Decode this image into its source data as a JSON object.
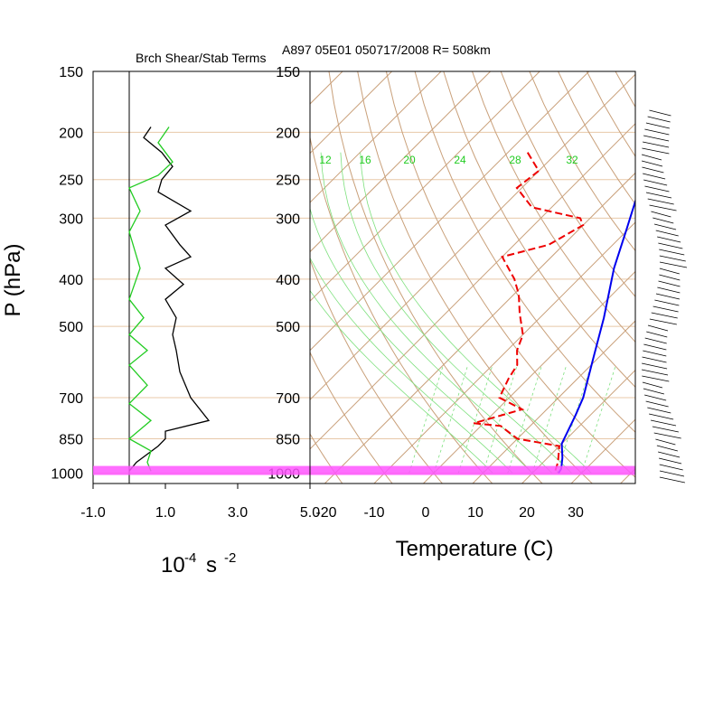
{
  "chart_data": [
    {
      "type": "line",
      "title": "Brch Shear/Stab Terms",
      "xlabel": "10⁻⁴ s⁻²",
      "xlabel_base": "10",
      "xlabel_exp1": "-4",
      "xlabel_unit": "s",
      "xlabel_exp2": "-2",
      "ylabel": "P (hPa)",
      "xlim": [
        -1.0,
        5.0
      ],
      "x_tick_labels": [
        "-1.0",
        "1.0",
        "3.0",
        "5.0"
      ],
      "y_tick_labels": [
        "150",
        "200",
        "250",
        "300",
        "400",
        "500",
        "700",
        "850",
        "1000"
      ],
      "y_scale": "log",
      "series": [
        {
          "color": "#000000",
          "points": [
            [
              0.6,
              195
            ],
            [
              0.4,
              205
            ],
            [
              0.9,
              220
            ],
            [
              1.2,
              235
            ],
            [
              0.9,
              250
            ],
            [
              0.8,
              265
            ],
            [
              1.7,
              290
            ],
            [
              1.0,
              310
            ],
            [
              1.4,
              340
            ],
            [
              1.7,
              360
            ],
            [
              1.0,
              380
            ],
            [
              1.5,
              410
            ],
            [
              1.0,
              440
            ],
            [
              1.3,
              480
            ],
            [
              1.2,
              520
            ],
            [
              1.3,
              560
            ],
            [
              1.4,
              620
            ],
            [
              1.7,
              700
            ],
            [
              2.2,
              780
            ],
            [
              1.0,
              820
            ],
            [
              1.0,
              850
            ],
            [
              0.8,
              880
            ],
            [
              0.2,
              950
            ],
            [
              0.0,
              990
            ]
          ]
        },
        {
          "color": "#22cc22",
          "points": [
            [
              1.1,
              195
            ],
            [
              0.8,
              210
            ],
            [
              1.2,
              230
            ],
            [
              0.8,
              245
            ],
            [
              0.0,
              260
            ],
            [
              0.3,
              290
            ],
            [
              0.0,
              320
            ],
            [
              0.3,
              380
            ],
            [
              0.0,
              440
            ],
            [
              0.4,
              480
            ],
            [
              0.0,
              520
            ],
            [
              0.5,
              560
            ],
            [
              0.0,
              600
            ],
            [
              0.5,
              660
            ],
            [
              0.0,
              720
            ],
            [
              0.6,
              780
            ],
            [
              0.0,
              850
            ],
            [
              0.6,
              900
            ],
            [
              0.5,
              950
            ],
            [
              0.6,
              990
            ]
          ]
        }
      ]
    },
    {
      "type": "line",
      "title": "A897 05E01 050717/2008 R= 508km",
      "xlabel": "Temperature (C)",
      "ylabel": "P (hPa)",
      "xlim": [
        -23,
        43
      ],
      "x_tick_labels": [
        "-20",
        "-10",
        "0",
        "10",
        "20",
        "30"
      ],
      "y_tick_labels": [
        "150",
        "200",
        "250",
        "300",
        "400",
        "500",
        "700",
        "850",
        "1000"
      ],
      "mixing_ratio_labels": [
        "12",
        "16",
        "20",
        "24",
        "28",
        "32"
      ],
      "highlight_band_hpa": [
        925,
        1000
      ],
      "series": [
        {
          "color": "#0000ee",
          "style": "solid",
          "points": [
            [
              -27,
              190
            ],
            [
              -22,
              220
            ],
            [
              -15,
              270
            ],
            [
              -10,
              320
            ],
            [
              -5,
              380
            ],
            [
              3,
              480
            ],
            [
              9,
              580
            ],
            [
              15,
              700
            ],
            [
              17,
              760
            ],
            [
              20,
              870
            ],
            [
              23,
              930
            ],
            [
              25,
              980
            ],
            [
              25.3,
              1000
            ]
          ]
        },
        {
          "color": "#ee0000",
          "style": "dashed",
          "points": [
            [
              -46,
              220
            ],
            [
              -40,
              240
            ],
            [
              -41,
              260
            ],
            [
              -34,
              285
            ],
            [
              -22,
              300
            ],
            [
              -20,
              310
            ],
            [
              -23,
              340
            ],
            [
              -30,
              360
            ],
            [
              -23,
              400
            ],
            [
              -19,
              430
            ],
            [
              -15,
              470
            ],
            [
              -10,
              520
            ],
            [
              -8,
              560
            ],
            [
              -5,
              600
            ],
            [
              -4,
              640
            ],
            [
              -2,
              700
            ],
            [
              5,
              740
            ],
            [
              -2,
              790
            ],
            [
              4,
              800
            ],
            [
              10,
              850
            ],
            [
              20,
              880
            ],
            [
              23,
              950
            ],
            [
              24.5,
              1000
            ]
          ]
        }
      ],
      "wind_barbs": "right-side profile"
    }
  ]
}
